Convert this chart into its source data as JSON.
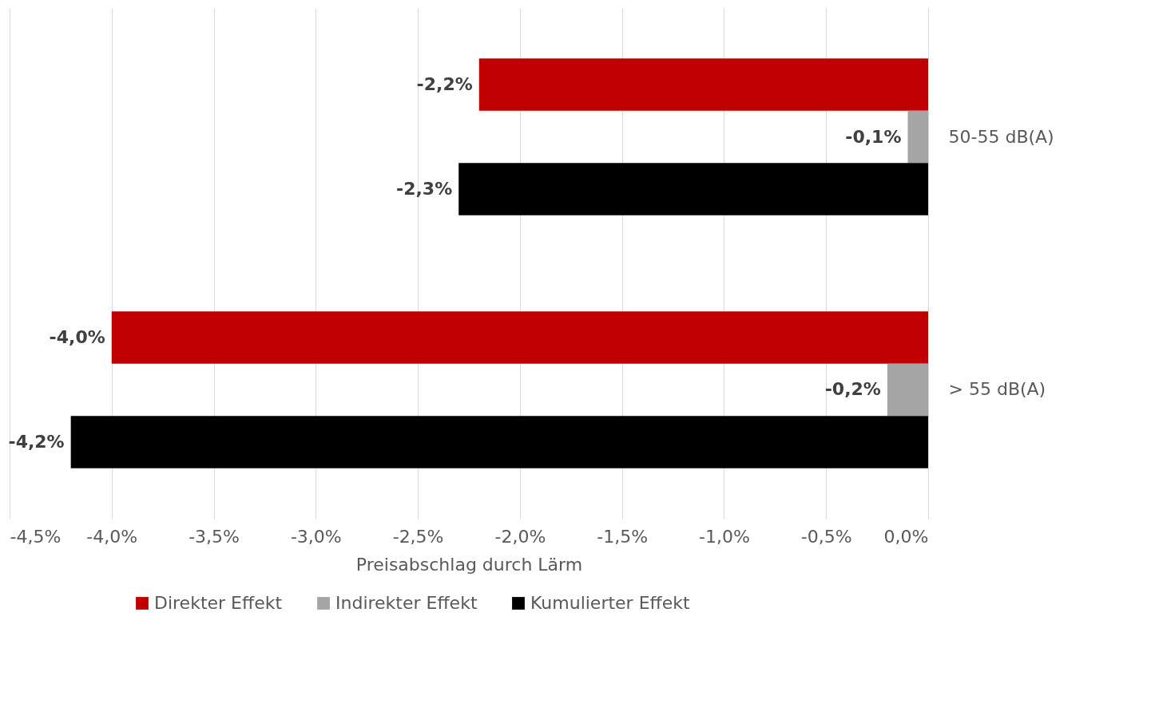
{
  "chart_data": {
    "type": "bar",
    "orientation": "horizontal",
    "xlabel": "Preisabschlag durch Lärm",
    "categories": [
      "50-55 dB(A)",
      "> 55 dB(A)"
    ],
    "series": [
      {
        "name": "Direkter Effekt",
        "color": "#c00000",
        "values": [
          -2.2,
          -4.0
        ],
        "value_labels": [
          "-2,2%",
          "-4,0%"
        ]
      },
      {
        "name": "Indirekter Effekt",
        "color": "#a5a5a5",
        "values": [
          -0.1,
          -0.2
        ],
        "value_labels": [
          "-0,1%",
          "-0,2%"
        ]
      },
      {
        "name": "Kumulierter Effekt",
        "color": "#000000",
        "values": [
          -2.3,
          -4.2
        ],
        "value_labels": [
          "-2,3%",
          "-4,2%"
        ]
      }
    ],
    "xlim": [
      -4.5,
      0
    ],
    "xticks": [
      {
        "value": -4.5,
        "label": "-4,5%"
      },
      {
        "value": -4.0,
        "label": "-4,0%"
      },
      {
        "value": -3.5,
        "label": "-3,5%"
      },
      {
        "value": -3.0,
        "label": "-3,0%"
      },
      {
        "value": -2.5,
        "label": "-2,5%"
      },
      {
        "value": -2.0,
        "label": "-2,0%"
      },
      {
        "value": -1.5,
        "label": "-1,5%"
      },
      {
        "value": -1.0,
        "label": "-1,0%"
      },
      {
        "value": -0.5,
        "label": "-0,5%"
      },
      {
        "value": 0,
        "label": "0,0%"
      }
    ],
    "grid": "x",
    "legend": "bottom"
  }
}
